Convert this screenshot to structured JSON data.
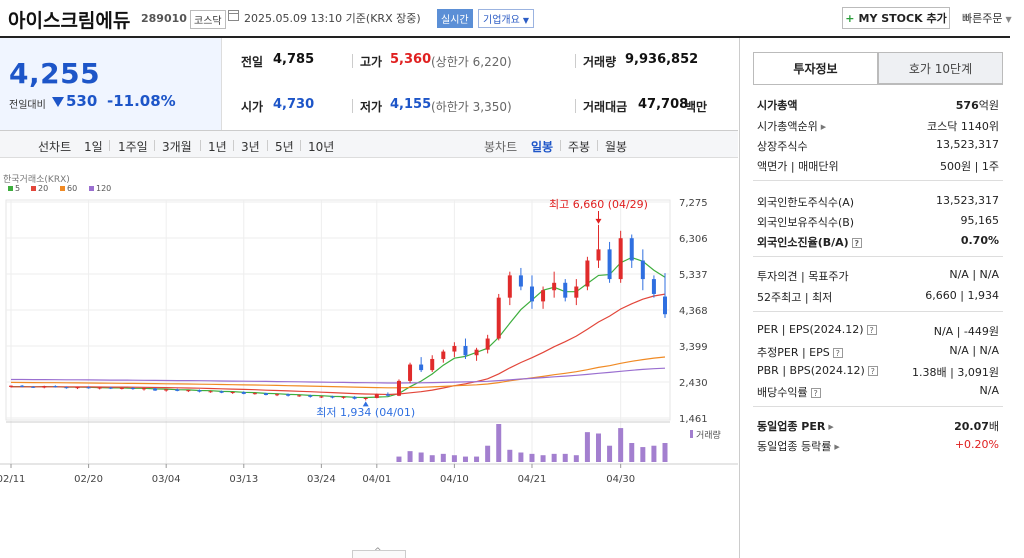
{
  "header": {
    "name": "아이스크림에듀",
    "code": "289010",
    "market": "코스닥",
    "date": "2025.05.09 13:10 기준(KRX 장중)",
    "realtime": "실시간",
    "overview": "기업개요",
    "mystock": "MY STOCK 추가",
    "quick": "빠른주문"
  },
  "price": {
    "now": "4,255",
    "change_label": "전일대비",
    "change": "530",
    "change_pct": "-11.08%"
  },
  "summary": {
    "prev_label": "전일",
    "prev": "4,785",
    "high_label": "고가",
    "high": "5,360",
    "upper_limit": "(상한가 6,220)",
    "volume_label": "거래량",
    "volume": "9,936,852",
    "open_label": "시가",
    "open": "4,730",
    "low_label": "저가",
    "low": "4,155",
    "lower_limit": "(하한가 3,350)",
    "amount_label": "거래대금",
    "amount": "47,708",
    "amount_unit": "백만"
  },
  "period": {
    "line_label": "선차트",
    "line_items": [
      "1일",
      "1주일",
      "3개월",
      "1년",
      "3년",
      "5년",
      "10년"
    ],
    "candle_label": "봉차트",
    "candle_items": [
      "일봉",
      "주봉",
      "월봉"
    ]
  },
  "tabs": [
    "투자정보",
    "호가 10단계"
  ],
  "invest": {
    "mcap_label": "시가총액",
    "mcap": "576",
    "mcap_unit": "억원",
    "mcap_rank_label": "시가총액순위",
    "mcap_rank": "코스닥 1140위",
    "shares_label": "상장주식수",
    "shares": "13,523,317",
    "par_label": "액면가",
    "unit_label": "매매단위",
    "par": "500원",
    "unit": "1주",
    "foreign_limit_label": "외국인한도주식수(A)",
    "foreign_limit": "13,523,317",
    "foreign_hold_label": "외국인보유주식수(B)",
    "foreign_hold": "95,165",
    "foreign_rate_label": "외국인소진율(B/A)",
    "foreign_rate": "0.70%",
    "opinion_label": "투자의견",
    "target_label": "목표주가",
    "opinion": "N/A",
    "target": "N/A",
    "w52_label": "52주최고",
    "w52_low_label": "최저",
    "w52_high": "6,660",
    "w52_low": "1,934",
    "per_label": "PER",
    "eps_label": "EPS(2024.12)",
    "per": "N/A",
    "eps": "-449원",
    "est_per_label": "추정PER",
    "est_eps_label": "EPS",
    "est_per": "N/A",
    "est_eps": "N/A",
    "pbr_label": "PBR",
    "bps_label": "BPS(2024.12)",
    "pbr": "1.38배",
    "bps": "3,091원",
    "div_label": "배당수익률",
    "div": "N/A",
    "ind_per_label": "동일업종 PER",
    "ind_per": "20.07",
    "ind_per_unit": "배",
    "ind_rate_label": "동일업종 등락률",
    "ind_rate": "+0.20%"
  },
  "chart_data": {
    "type": "candlestick",
    "source_label": "한국거래소(KRX)",
    "ma_legend": [
      {
        "name": "5",
        "color": "#3dae3d"
      },
      {
        "name": "20",
        "color": "#e2463a"
      },
      {
        "name": "60",
        "color": "#f08a24"
      },
      {
        "name": "120",
        "color": "#9a6fd0"
      }
    ],
    "y_ticks": [
      "7,275",
      "6,306",
      "5,337",
      "4,368",
      "3,399",
      "2,430",
      "1,461"
    ],
    "x_ticks": [
      "02/11",
      "02/20",
      "03/04",
      "03/13",
      "03/24",
      "04/01",
      "04/10",
      "04/21",
      "04/30"
    ],
    "max_label": "최고 6,660 (04/29)",
    "min_label": "최저 1,934 (04/01)",
    "volume_label": "거래량",
    "candles": [
      [
        2300,
        2340,
        2280,
        2330
      ],
      [
        2330,
        2350,
        2290,
        2300
      ],
      [
        2300,
        2320,
        2270,
        2280
      ],
      [
        2280,
        2330,
        2260,
        2320
      ],
      [
        2320,
        2340,
        2280,
        2290
      ],
      [
        2290,
        2310,
        2250,
        2270
      ],
      [
        2270,
        2300,
        2240,
        2290
      ],
      [
        2290,
        2310,
        2250,
        2260
      ],
      [
        2260,
        2290,
        2230,
        2280
      ],
      [
        2280,
        2300,
        2240,
        2250
      ],
      [
        2250,
        2280,
        2230,
        2270
      ],
      [
        2270,
        2290,
        2220,
        2240
      ],
      [
        2240,
        2270,
        2200,
        2260
      ],
      [
        2260,
        2270,
        2190,
        2200
      ],
      [
        2200,
        2240,
        2170,
        2230
      ],
      [
        2230,
        2250,
        2180,
        2190
      ],
      [
        2190,
        2220,
        2160,
        2210
      ],
      [
        2210,
        2230,
        2150,
        2170
      ],
      [
        2170,
        2200,
        2140,
        2180
      ],
      [
        2180,
        2200,
        2130,
        2140
      ],
      [
        2140,
        2170,
        2110,
        2160
      ],
      [
        2160,
        2180,
        2100,
        2110
      ],
      [
        2110,
        2150,
        2090,
        2130
      ],
      [
        2130,
        2140,
        2070,
        2080
      ],
      [
        2080,
        2120,
        2050,
        2100
      ],
      [
        2100,
        2120,
        2040,
        2060
      ],
      [
        2060,
        2090,
        2030,
        2070
      ],
      [
        2070,
        2090,
        2010,
        2030
      ],
      [
        2030,
        2060,
        2000,
        2040
      ],
      [
        2040,
        2060,
        1990,
        2010
      ],
      [
        2010,
        2050,
        1980,
        2030
      ],
      [
        2030,
        2050,
        1960,
        1980
      ],
      [
        1980,
        2020,
        1934,
        2000
      ],
      [
        2000,
        2120,
        1990,
        2100
      ],
      [
        2100,
        2150,
        2040,
        2060
      ],
      [
        2060,
        2500,
        2050,
        2460
      ],
      [
        2460,
        2950,
        2400,
        2900
      ],
      [
        2900,
        3100,
        2700,
        2750
      ],
      [
        2750,
        3150,
        2700,
        3050
      ],
      [
        3050,
        3300,
        2950,
        3250
      ],
      [
        3250,
        3500,
        3100,
        3400
      ],
      [
        3400,
        3600,
        3050,
        3150
      ],
      [
        3150,
        3350,
        3000,
        3300
      ],
      [
        3300,
        3700,
        3200,
        3600
      ],
      [
        3600,
        4800,
        3550,
        4700
      ],
      [
        4700,
        5400,
        4500,
        5300
      ],
      [
        5300,
        5500,
        4900,
        5000
      ],
      [
        5000,
        5300,
        4400,
        4600
      ],
      [
        4600,
        5000,
        4400,
        4900
      ],
      [
        4900,
        5400,
        4700,
        5100
      ],
      [
        5100,
        5200,
        4600,
        4700
      ],
      [
        4700,
        5200,
        4500,
        5000
      ],
      [
        5000,
        5800,
        4900,
        5700
      ],
      [
        5700,
        6660,
        5500,
        6000
      ],
      [
        6000,
        6200,
        5100,
        5200
      ],
      [
        5200,
        6500,
        5100,
        6300
      ],
      [
        6300,
        6400,
        5500,
        5700
      ],
      [
        5700,
        6000,
        4900,
        5200
      ],
      [
        5200,
        5300,
        4700,
        4800
      ],
      [
        4730,
        5360,
        4155,
        4255
      ]
    ],
    "volumes": [
      0,
      0,
      0,
      0,
      0,
      0,
      0,
      0,
      0,
      0,
      0,
      0,
      0,
      0,
      0,
      0,
      0,
      0,
      0,
      0,
      0,
      0,
      0,
      0,
      0,
      0,
      0,
      0,
      0,
      0,
      0,
      0,
      0,
      0,
      0,
      4,
      8,
      7,
      5,
      6,
      5,
      4,
      4,
      12,
      28,
      9,
      7,
      6,
      5,
      6,
      6,
      5,
      22,
      21,
      12,
      25,
      14,
      11,
      12,
      14
    ]
  }
}
